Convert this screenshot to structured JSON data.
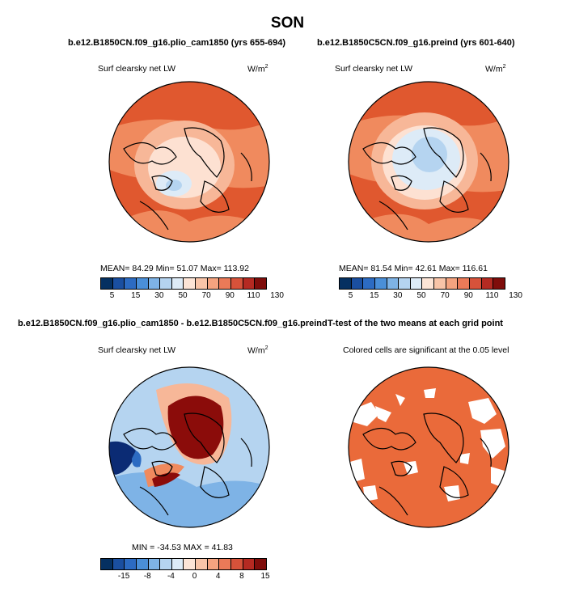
{
  "title": "SON",
  "panels": [
    {
      "id": "plio",
      "heading": "b.e12.B1850CN.f09_g16.plio_cam1850 (yrs 655-694)",
      "variable_label": "Surf clearsky net LW",
      "units_base": "W/m",
      "units_exp": "2",
      "stats": "MEAN=   84.29   Min=   51.07   Max=  113.92"
    },
    {
      "id": "preind",
      "heading": "b.e12.B1850C5CN.f09_g16.preind (yrs 601-640)",
      "variable_label": "Surf clearsky net LW",
      "units_base": "W/m",
      "units_exp": "2",
      "stats": "MEAN=   81.54   Min=   42.61   Max=  116.61"
    },
    {
      "id": "diff",
      "heading": "b.e12.B1850CN.f09_g16.plio_cam1850 - b.e12.B1850C5CN.f09_g16.preind",
      "variable_label": "Surf clearsky net LW",
      "units_base": "W/m",
      "units_exp": "2",
      "stats": "MIN =  -34.53  MAX =   41.83"
    },
    {
      "id": "ttest",
      "heading": "T-test of the two means at each grid point",
      "variable_label": "Colored cells are significant at the 0.05 level"
    }
  ],
  "colorbars": {
    "absolute": {
      "colors": [
        "#053061",
        "#1a4fa0",
        "#2c6bc2",
        "#4a8fd8",
        "#7eb3e6",
        "#b5d4f0",
        "#ddebf7",
        "#fce4d6",
        "#f8c4a8",
        "#f4a37f",
        "#ea7a58",
        "#d6523a",
        "#b52a22",
        "#7f0d0b"
      ],
      "tick_labels": [
        "5",
        "15",
        "30",
        "50",
        "70",
        "90",
        "110",
        "130"
      ]
    },
    "difference": {
      "colors": [
        "#053061",
        "#1a4fa0",
        "#2c6bc2",
        "#4a8fd8",
        "#7eb3e6",
        "#b5d4f0",
        "#ddebf7",
        "#fce4d6",
        "#f8c4a8",
        "#f4a37f",
        "#ea7a58",
        "#d6523a",
        "#b52a22",
        "#7f0d0b"
      ],
      "tick_labels": [
        "-15",
        "-8",
        "-4",
        "0",
        "4",
        "8",
        "15"
      ]
    }
  },
  "map_colors": {
    "warm_dark": "#e0582f",
    "warm_mid": "#f08a5e",
    "warm_light": "#f7b798",
    "warm_pale": "#fde1d2",
    "cool_pale": "#ddebf7",
    "cool_light": "#b5d4f0",
    "cool_mid": "#7eb3e6",
    "cool_dark": "#2c6bc2",
    "navy": "#0b2b74",
    "deep_red": "#8b0c0a",
    "signif": "#ea6a3a"
  }
}
